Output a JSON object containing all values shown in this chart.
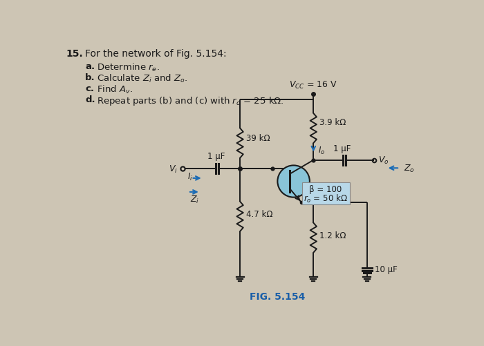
{
  "title_num": "15.",
  "title_rest": "For the network of Fig. 5.154:",
  "items": [
    [
      "a.",
      "Determine $r_e$."
    ],
    [
      "b.",
      "Calculate $Z_i$ and $Z_o$."
    ],
    [
      "c.",
      "Find $A_v$."
    ],
    [
      "d.",
      "Repeat parts (b) and (c) with $r_o$ = 25 kΩ."
    ]
  ],
  "fig_label": "FIG. 5.154",
  "vcc_label": "$V_{CC}$ = 16 V",
  "r1_label": "39 kΩ",
  "r2_label": "3.9 kΩ",
  "r3_label": "4.7 kΩ",
  "r4_label": "1.2 kΩ",
  "c1_label": "1 μF",
  "c2_label": "1 μF",
  "c3_label": "10 μF",
  "beta_label": "β = 100",
  "ro_label": "$r_o$ = 50 kΩ",
  "vi_label": "$V_i$",
  "vo_label": "$V_o$",
  "zi_label": "$Z_i$",
  "zo_label": "$Z_o$",
  "io_label": "$I_o$",
  "ii_label": "$I_i$",
  "bg_color": "#cdc5b4",
  "text_color": "#1a1a1a",
  "wire_color": "#1a1a1a",
  "blue_color": "#1a6bb5",
  "transistor_fill": "#89c4d8",
  "fig_label_color": "#1a5fa8",
  "beta_box_color": "#b8d8e8"
}
